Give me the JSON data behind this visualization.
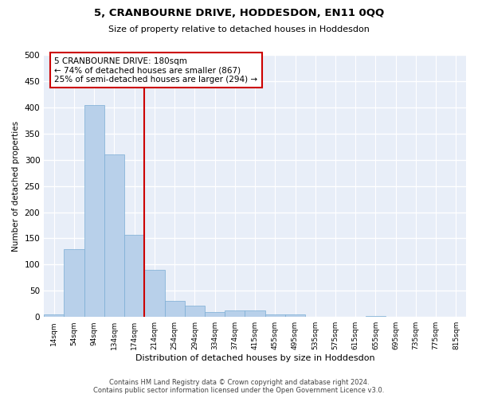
{
  "title": "5, CRANBOURNE DRIVE, HODDESDON, EN11 0QQ",
  "subtitle": "Size of property relative to detached houses in Hoddesdon",
  "xlabel": "Distribution of detached houses by size in Hoddesdon",
  "ylabel": "Number of detached properties",
  "bar_color": "#b8d0ea",
  "bar_edge_color": "#7aadd4",
  "bg_color": "#e8eef8",
  "grid_color": "#ffffff",
  "annotation_line_color": "#cc0000",
  "annotation_box_color": "#cc0000",
  "categories": [
    "14sqm",
    "54sqm",
    "94sqm",
    "134sqm",
    "174sqm",
    "214sqm",
    "254sqm",
    "294sqm",
    "334sqm",
    "374sqm",
    "415sqm",
    "455sqm",
    "495sqm",
    "535sqm",
    "575sqm",
    "615sqm",
    "655sqm",
    "695sqm",
    "735sqm",
    "775sqm",
    "815sqm"
  ],
  "values": [
    5,
    130,
    405,
    310,
    157,
    90,
    30,
    22,
    9,
    13,
    13,
    5,
    5,
    0,
    0,
    0,
    2,
    0,
    0,
    0,
    1
  ],
  "property_line_x": 4.5,
  "annotation_text_line1": "5 CRANBOURNE DRIVE: 180sqm",
  "annotation_text_line2": "← 74% of detached houses are smaller (867)",
  "annotation_text_line3": "25% of semi-detached houses are larger (294) →",
  "ylim": [
    0,
    500
  ],
  "yticks": [
    0,
    50,
    100,
    150,
    200,
    250,
    300,
    350,
    400,
    450,
    500
  ],
  "footer_line1": "Contains HM Land Registry data © Crown copyright and database right 2024.",
  "footer_line2": "Contains public sector information licensed under the Open Government Licence v3.0."
}
